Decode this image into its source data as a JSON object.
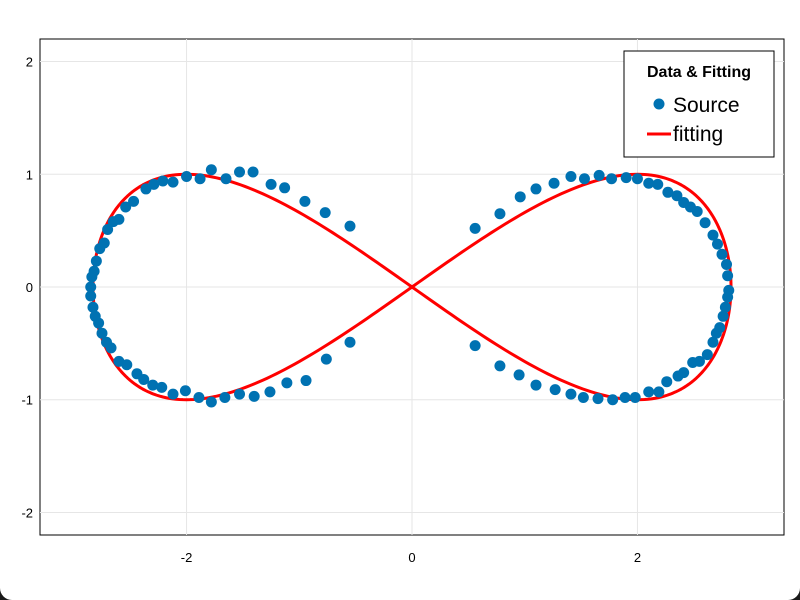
{
  "chart_data": {
    "type": "scatter",
    "xlim": [
      -3.3,
      3.3
    ],
    "ylim": [
      -2.2,
      2.2
    ],
    "xticks": [
      -2,
      0,
      2
    ],
    "yticks": [
      -2,
      -1,
      0,
      1,
      2
    ],
    "xtick_labels": [
      "-2",
      "0",
      "2"
    ],
    "ytick_labels": [
      "-2",
      "-1",
      "0",
      "1",
      "2"
    ],
    "grid": true,
    "legend": {
      "title": "Data & Fitting",
      "placement": "top-right",
      "entries": [
        {
          "label": "Source",
          "marker": "circle",
          "color": "#0072b2"
        },
        {
          "label": "fitting",
          "marker": "line",
          "color": "#ff0000"
        }
      ]
    },
    "series": [
      {
        "name": "Source",
        "kind": "scatter",
        "color": "#0072b2",
        "points": [
          [
            -0.55,
            0.54
          ],
          [
            -0.77,
            0.66
          ],
          [
            -0.95,
            0.76
          ],
          [
            -1.13,
            0.88
          ],
          [
            -1.25,
            0.91
          ],
          [
            -1.41,
            1.02
          ],
          [
            -1.53,
            1.02
          ],
          [
            -1.65,
            0.96
          ],
          [
            -1.78,
            1.04
          ],
          [
            -1.88,
            0.96
          ],
          [
            -2.0,
            0.98
          ],
          [
            -2.12,
            0.93
          ],
          [
            -2.21,
            0.94
          ],
          [
            -2.29,
            0.91
          ],
          [
            -2.36,
            0.87
          ],
          [
            -2.47,
            0.76
          ],
          [
            -2.54,
            0.71
          ],
          [
            -2.6,
            0.6
          ],
          [
            -2.65,
            0.58
          ],
          [
            -2.7,
            0.51
          ],
          [
            -2.73,
            0.39
          ],
          [
            -2.77,
            0.34
          ],
          [
            -2.8,
            0.23
          ],
          [
            -2.82,
            0.14
          ],
          [
            -2.84,
            0.09
          ],
          [
            -2.85,
            0.0
          ],
          [
            -2.85,
            -0.08
          ],
          [
            -2.83,
            -0.18
          ],
          [
            -2.81,
            -0.26
          ],
          [
            -2.78,
            -0.32
          ],
          [
            -2.75,
            -0.41
          ],
          [
            -2.71,
            -0.49
          ],
          [
            -2.67,
            -0.54
          ],
          [
            -2.6,
            -0.66
          ],
          [
            -2.53,
            -0.69
          ],
          [
            -2.44,
            -0.77
          ],
          [
            -2.38,
            -0.82
          ],
          [
            -2.3,
            -0.87
          ],
          [
            -2.22,
            -0.89
          ],
          [
            -2.12,
            -0.95
          ],
          [
            -2.01,
            -0.92
          ],
          [
            -1.89,
            -0.98
          ],
          [
            -1.78,
            -1.02
          ],
          [
            -1.66,
            -0.98
          ],
          [
            -1.53,
            -0.95
          ],
          [
            -1.4,
            -0.97
          ],
          [
            -1.26,
            -0.93
          ],
          [
            -1.11,
            -0.85
          ],
          [
            -0.94,
            -0.83
          ],
          [
            -0.76,
            -0.64
          ],
          [
            -0.55,
            -0.49
          ],
          [
            0.56,
            0.52
          ],
          [
            0.78,
            0.65
          ],
          [
            0.96,
            0.8
          ],
          [
            1.1,
            0.87
          ],
          [
            1.26,
            0.92
          ],
          [
            1.41,
            0.98
          ],
          [
            1.53,
            0.96
          ],
          [
            1.66,
            0.99
          ],
          [
            1.77,
            0.96
          ],
          [
            1.9,
            0.97
          ],
          [
            2.0,
            0.96
          ],
          [
            2.1,
            0.92
          ],
          [
            2.18,
            0.91
          ],
          [
            2.27,
            0.84
          ],
          [
            2.35,
            0.81
          ],
          [
            2.41,
            0.75
          ],
          [
            2.47,
            0.71
          ],
          [
            2.53,
            0.67
          ],
          [
            2.6,
            0.57
          ],
          [
            2.67,
            0.46
          ],
          [
            2.71,
            0.38
          ],
          [
            2.75,
            0.29
          ],
          [
            2.79,
            0.2
          ],
          [
            2.8,
            0.1
          ],
          [
            2.81,
            -0.03
          ],
          [
            2.8,
            -0.09
          ],
          [
            2.78,
            -0.18
          ],
          [
            2.76,
            -0.26
          ],
          [
            2.73,
            -0.36
          ],
          [
            2.7,
            -0.41
          ],
          [
            2.67,
            -0.49
          ],
          [
            2.62,
            -0.6
          ],
          [
            2.55,
            -0.66
          ],
          [
            2.49,
            -0.67
          ],
          [
            2.41,
            -0.76
          ],
          [
            2.36,
            -0.79
          ],
          [
            2.26,
            -0.84
          ],
          [
            2.19,
            -0.93
          ],
          [
            2.1,
            -0.93
          ],
          [
            1.98,
            -0.98
          ],
          [
            1.89,
            -0.98
          ],
          [
            1.78,
            -1.0
          ],
          [
            1.65,
            -0.99
          ],
          [
            1.52,
            -0.98
          ],
          [
            1.41,
            -0.95
          ],
          [
            1.27,
            -0.91
          ],
          [
            1.1,
            -0.87
          ],
          [
            0.95,
            -0.78
          ],
          [
            0.78,
            -0.7
          ],
          [
            0.56,
            -0.52
          ]
        ]
      },
      {
        "name": "fitting",
        "kind": "line",
        "color": "#ff0000",
        "curve": "lemniscate-like figure eight: x from -2.83 to 2.83, y = ±1 at x = ±1.75, crossing at origin"
      }
    ]
  }
}
